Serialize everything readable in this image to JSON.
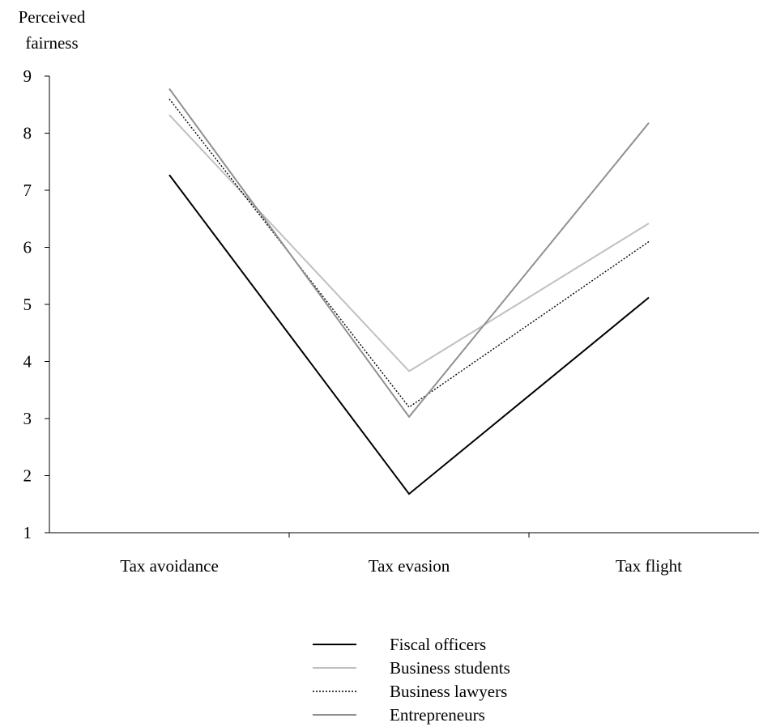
{
  "chart_data": {
    "type": "line",
    "ylabel_lines": [
      "Perceived",
      "fairness"
    ],
    "xlabel": "",
    "categories": [
      "Tax avoidance",
      "Tax evasion",
      "Tax flight"
    ],
    "ylim": [
      1,
      9
    ],
    "yticks": [
      "1",
      "2",
      "3",
      "4",
      "5",
      "6",
      "7",
      "8",
      "9"
    ],
    "grid": false,
    "legend_position": "bottom-center",
    "series": [
      {
        "name": "Fiscal officers",
        "values": [
          7.27,
          1.68,
          5.12
        ],
        "color": "#000000",
        "style": "solid"
      },
      {
        "name": "Business students",
        "values": [
          8.32,
          3.83,
          6.42
        ],
        "color": "#c0c0c0",
        "style": "solid"
      },
      {
        "name": "Business lawyers",
        "values": [
          8.6,
          3.2,
          6.1
        ],
        "color": "#000000",
        "style": "dotted"
      },
      {
        "name": "Entrepreneurs",
        "values": [
          8.78,
          3.03,
          8.18
        ],
        "color": "#909090",
        "style": "solid"
      }
    ]
  }
}
